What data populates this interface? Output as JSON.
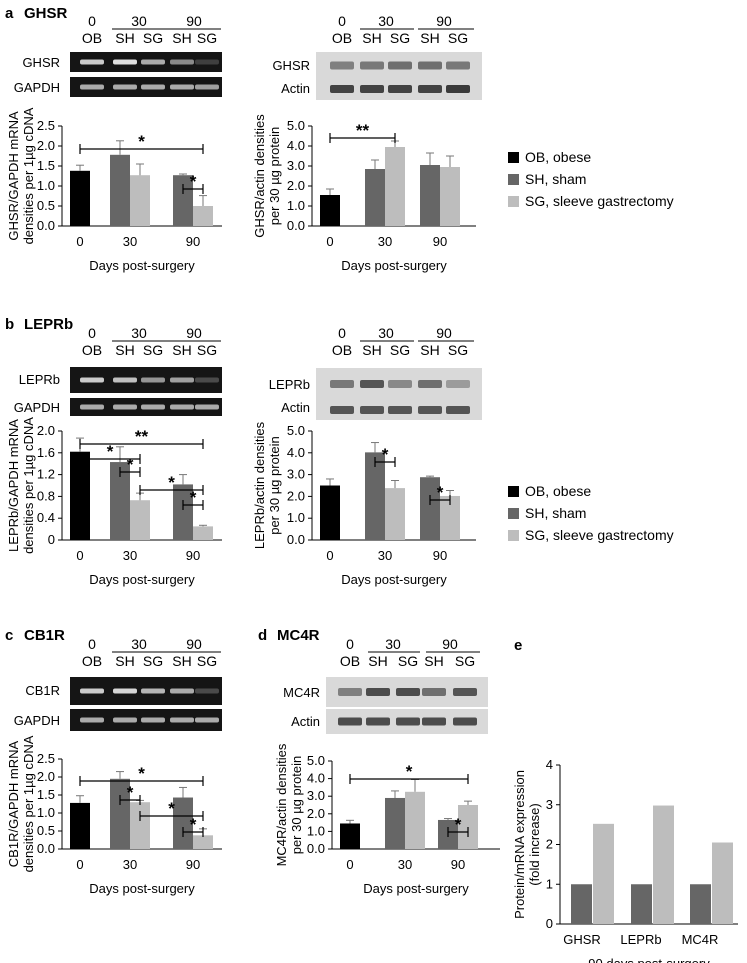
{
  "colors": {
    "ob": "#000000",
    "sh": "#666666",
    "sg": "#bdbdbd"
  },
  "legend": [
    {
      "key": "ob",
      "label": "OB, obese"
    },
    {
      "key": "sh",
      "label": "SH, sham"
    },
    {
      "key": "sg",
      "label": "SG, sleeve gastrectomy"
    }
  ],
  "panels": {
    "a": {
      "letter": "a",
      "title": "GHSR"
    },
    "b": {
      "letter": "b",
      "title": "LEPRb"
    },
    "c": {
      "letter": "c",
      "title": "CB1R"
    },
    "d": {
      "letter": "d",
      "title": "MC4R"
    },
    "e": {
      "letter": "e",
      "title": ""
    }
  },
  "lane_header": {
    "groups": [
      "0",
      "30",
      "90"
    ],
    "lanes": [
      "OB",
      "SH",
      "SG",
      "SH",
      "SG"
    ]
  },
  "blot_labels": {
    "a_rna": [
      "GHSR",
      "GAPDH"
    ],
    "a_prot": [
      "GHSR",
      "Actin"
    ],
    "b_rna": [
      "LEPRb",
      "GAPDH"
    ],
    "b_prot": [
      "LEPRb",
      "Actin"
    ],
    "c_rna": [
      "CB1R",
      "GAPDH"
    ],
    "d_prot": [
      "MC4R",
      "Actin"
    ]
  },
  "chart_data": [
    {
      "id": "a_mrna",
      "type": "bar",
      "categories": [
        "0",
        "30",
        "90"
      ],
      "series": [
        {
          "name": "OB",
          "values": [
            1.38,
            null,
            null
          ],
          "errors": [
            0.14,
            null,
            null
          ]
        },
        {
          "name": "SH",
          "values": [
            null,
            1.78,
            1.27
          ],
          "errors": [
            null,
            0.35,
            0.03
          ]
        },
        {
          "name": "SG",
          "values": [
            null,
            1.27,
            0.5
          ],
          "errors": [
            null,
            0.28,
            0.26
          ]
        }
      ],
      "ylim": [
        0,
        2.5
      ],
      "yticks": [
        "0.0",
        "0.5",
        "1.0",
        "1.5",
        "2.0",
        "2.5"
      ],
      "ylabel": [
        "GHSR/GAPDH mRNA",
        "densities per 1µg cDNA"
      ],
      "xlabel": "Days post-surgery",
      "significance": [
        {
          "from": "0-OB",
          "to": "90-SG",
          "label": "*"
        },
        {
          "from": "90-SH",
          "to": "90-SG",
          "label": "*"
        }
      ]
    },
    {
      "id": "a_prot",
      "type": "bar",
      "categories": [
        "0",
        "30",
        "90"
      ],
      "series": [
        {
          "name": "OB",
          "values": [
            1.55,
            null,
            null
          ],
          "errors": [
            0.3,
            null,
            null
          ]
        },
        {
          "name": "SH",
          "values": [
            null,
            2.85,
            3.05
          ],
          "errors": [
            null,
            0.45,
            0.6
          ]
        },
        {
          "name": "SG",
          "values": [
            null,
            3.95,
            2.95
          ],
          "errors": [
            null,
            0.3,
            0.55
          ]
        }
      ],
      "ylim": [
        0,
        5.0
      ],
      "yticks": [
        "0.0",
        "1.0",
        "2.0",
        "3.0",
        "4.0",
        "5.0"
      ],
      "ylabel": [
        "GHSR/actin densities",
        "per 30 µg protein"
      ],
      "xlabel": "Days post-surgery",
      "significance": [
        {
          "from": "0-OB",
          "to": "30-SG",
          "label": "**"
        }
      ]
    },
    {
      "id": "b_mrna",
      "type": "bar",
      "categories": [
        "0",
        "30",
        "90"
      ],
      "series": [
        {
          "name": "OB",
          "values": [
            1.62,
            null,
            null
          ],
          "errors": [
            0.25,
            null,
            null
          ]
        },
        {
          "name": "SH",
          "values": [
            null,
            1.43,
            1.02
          ],
          "errors": [
            null,
            0.28,
            0.18
          ]
        },
        {
          "name": "SG",
          "values": [
            null,
            0.73,
            0.25
          ],
          "errors": [
            null,
            0.13,
            0.02
          ]
        }
      ],
      "ylim": [
        0,
        2.0
      ],
      "yticks": [
        "0",
        "0.4",
        "0.8",
        "1.2",
        "1.6",
        "2.0"
      ],
      "ylabel": [
        "LEPRb/GAPDH mRNA",
        "densities per 1µg cDNA"
      ],
      "xlabel": "Days post-surgery",
      "significance": [
        {
          "from": "0-OB",
          "to": "90-SG",
          "label": "**"
        },
        {
          "from": "0-OB",
          "to": "30-SG",
          "label": "*"
        },
        {
          "from": "30-SH",
          "to": "30-SG",
          "label": "*"
        },
        {
          "from": "30-SG",
          "to": "90-SG",
          "label": "*"
        },
        {
          "from": "90-SH",
          "to": "90-SG",
          "label": "*"
        }
      ]
    },
    {
      "id": "b_prot",
      "type": "bar",
      "categories": [
        "0",
        "30",
        "90"
      ],
      "series": [
        {
          "name": "OB",
          "values": [
            2.5,
            null,
            null
          ],
          "errors": [
            0.3,
            null,
            null
          ]
        },
        {
          "name": "SH",
          "values": [
            null,
            4.02,
            2.88
          ],
          "errors": [
            null,
            0.45,
            0.05
          ]
        },
        {
          "name": "SG",
          "values": [
            null,
            2.38,
            2.02
          ],
          "errors": [
            null,
            0.35,
            0.25
          ]
        }
      ],
      "ylim": [
        0,
        5.0
      ],
      "yticks": [
        "0.0",
        "1.0",
        "2.0",
        "3.0",
        "4.0",
        "5.0"
      ],
      "ylabel": [
        "LEPRb/actin densities",
        "per 30 µg protein"
      ],
      "xlabel": "Days post-surgery",
      "significance": [
        {
          "from": "30-SH",
          "to": "30-SG",
          "label": "*"
        },
        {
          "from": "90-SH",
          "to": "90-SG",
          "label": "*"
        }
      ]
    },
    {
      "id": "c_mrna",
      "type": "bar",
      "categories": [
        "0",
        "30",
        "90"
      ],
      "series": [
        {
          "name": "OB",
          "values": [
            1.28,
            null,
            null
          ],
          "errors": [
            0.2,
            null,
            null
          ]
        },
        {
          "name": "SH",
          "values": [
            null,
            1.95,
            1.43
          ],
          "errors": [
            null,
            0.2,
            0.28
          ]
        },
        {
          "name": "SG",
          "values": [
            null,
            1.3,
            0.38
          ],
          "errors": [
            null,
            0.05,
            0.18
          ]
        }
      ],
      "ylim": [
        0,
        2.5
      ],
      "yticks": [
        "0.0",
        "0.5",
        "1.0",
        "1.5",
        "2.0",
        "2.5"
      ],
      "ylabel": [
        "CB1R/GAPDH mRNA",
        "densities per 1µg cDNA"
      ],
      "xlabel": "Days post-surgery",
      "significance": [
        {
          "from": "0-OB",
          "to": "90-SG",
          "label": "*"
        },
        {
          "from": "30-SH",
          "to": "30-SG",
          "label": "*"
        },
        {
          "from": "30-SG",
          "to": "90-SG",
          "label": "*"
        },
        {
          "from": "90-SH",
          "to": "90-SG",
          "label": "*"
        }
      ]
    },
    {
      "id": "d_prot",
      "type": "bar",
      "categories": [
        "0",
        "30",
        "90"
      ],
      "series": [
        {
          "name": "OB",
          "values": [
            1.45,
            null,
            null
          ],
          "errors": [
            0.18,
            null,
            null
          ]
        },
        {
          "name": "SH",
          "values": [
            null,
            2.9,
            1.65
          ],
          "errors": [
            null,
            0.4,
            0.08
          ]
        },
        {
          "name": "SG",
          "values": [
            null,
            3.25,
            2.5
          ],
          "errors": [
            null,
            0.7,
            0.22
          ]
        }
      ],
      "ylim": [
        0,
        5.0
      ],
      "yticks": [
        "0.0",
        "1.0",
        "2.0",
        "3.0",
        "4.0",
        "5.0"
      ],
      "ylabel": [
        "MC4R/actin densities",
        "per 30 µg protein"
      ],
      "xlabel": "Days post-surgery",
      "significance": [
        {
          "from": "0-OB",
          "to": "90-SG",
          "label": "*"
        },
        {
          "from": "90-SH",
          "to": "90-SG",
          "label": "*"
        }
      ]
    },
    {
      "id": "e_fold",
      "type": "bar",
      "categories": [
        "GHSR",
        "LEPRb",
        "MC4R"
      ],
      "series": [
        {
          "name": "SH",
          "values": [
            1.0,
            1.0,
            1.0
          ]
        },
        {
          "name": "SG",
          "values": [
            2.52,
            2.98,
            2.05
          ]
        }
      ],
      "ylim": [
        0,
        4
      ],
      "yticks": [
        "0",
        "1",
        "2",
        "3",
        "4"
      ],
      "ylabel": [
        "Protein/mRNA expression",
        "(fold increase)"
      ],
      "xlabel": "90 days post-surgery"
    }
  ]
}
